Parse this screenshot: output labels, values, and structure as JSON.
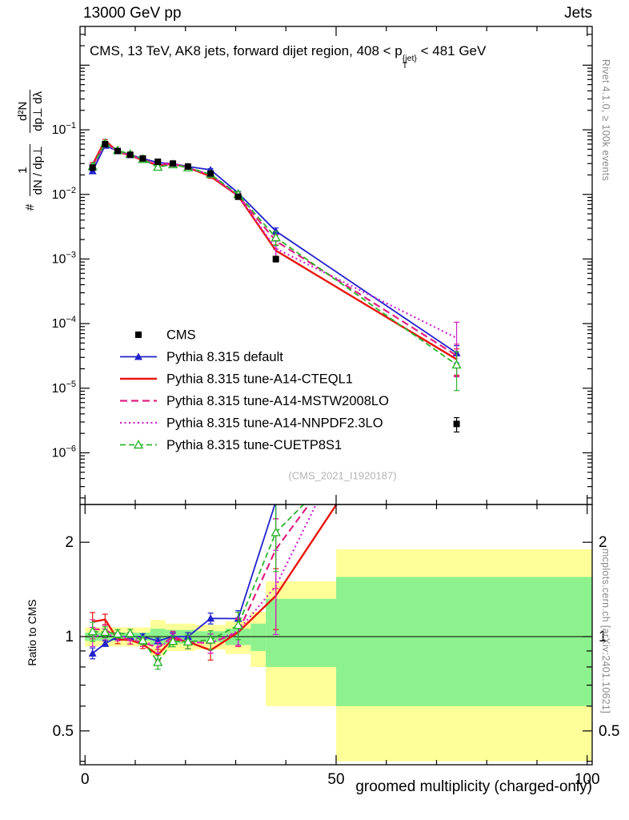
{
  "header": {
    "left": "13000 GeV pp",
    "right": "Jets"
  },
  "panel_title": {
    "pre": "CMS, 13 TeV, AK8 jets, forward dijet region, 408 < p",
    "sup": "{jet}",
    "sub": "T",
    "post": " < 481 GeV"
  },
  "y_axis_title": {
    "prefix": "#",
    "frac1_num": "1",
    "frac1_den": "dN / dp⊥",
    "frac2_num": "d²N",
    "frac2_den": "dp⊥ dλ"
  },
  "ratio_axis_title": "Ratio to CMS",
  "x_axis_title": "groomed multiplicity (charged-only)",
  "watermark": "(CMS_2021_I1920187)",
  "side_notes": {
    "rivet": "Rivet 4.1.0, ≥ 100k events",
    "mcplots": "mcplots.cern.ch [arXiv:2401.10621]"
  },
  "chart_data": {
    "type": "line",
    "title": "CMS, 13 TeV, AK8 jets, forward dijet region, 408 < pT{jet} < 481 GeV",
    "xlabel": "groomed multiplicity (charged-only)",
    "ylabel": "# 1/(dN/dp⊥) d²N/(dp⊥ dλ)",
    "ratio_ylabel": "Ratio to CMS",
    "x": [
      1.5,
      4,
      6.5,
      9,
      11.5,
      14.5,
      17.5,
      20.5,
      25,
      30.5,
      38,
      74
    ],
    "axes": {
      "x": {
        "min": -1,
        "max": 101,
        "major_ticks": [
          0,
          50,
          100
        ],
        "labels": [
          "0",
          "50",
          "100"
        ],
        "minor_step": 10
      },
      "y_top": {
        "scale": "log",
        "max_exp": 0.6,
        "min_exp": -6.8,
        "labeled_exponents": [
          -1,
          -2,
          -3,
          -4,
          -5,
          -6
        ]
      },
      "y_ratio": {
        "scale": "log",
        "min": 0.39,
        "max": 2.64,
        "major_ticks": [
          0.5,
          1,
          2
        ],
        "labels": [
          "0.5",
          "1",
          "2"
        ],
        "minor_ticks": [
          0.4,
          0.6,
          0.7,
          0.8,
          0.9
        ]
      }
    },
    "colors": {
      "band_yellow": "#ffff99",
      "band_green": "#8df28d",
      "reference_line": "#000000"
    },
    "series": [
      {
        "id": "cms",
        "label": "CMS",
        "color": "#000000",
        "line": "none",
        "marker": "square",
        "is_ref": true,
        "values": [
          0.026,
          0.06,
          0.047,
          0.041,
          0.036,
          0.032,
          0.03,
          0.027,
          0.021,
          0.0092,
          0.001,
          2.8e-06
        ],
        "err": [
          0.05,
          0.03,
          0.03,
          0.03,
          0.03,
          0.03,
          0.04,
          0.04,
          0.05,
          0.07,
          0.1,
          0.25
        ]
      },
      {
        "id": "pythia-default",
        "label": "Pythia 8.315 default",
        "color": "#2121cc",
        "line": "solid",
        "width": 1.8,
        "marker": "triangle",
        "values": [
          0.023,
          0.057,
          0.047,
          0.041,
          0.036,
          0.031,
          0.03,
          0.027,
          0.024,
          0.0105,
          0.0027,
          3.5e-05
        ],
        "err": [
          0.04,
          0.02,
          0.02,
          0.02,
          0.02,
          0.02,
          0.03,
          0.03,
          0.04,
          0.06,
          0.12,
          0.3
        ]
      },
      {
        "id": "a14-cteql1",
        "label": "Pythia 8.315 tune-A14-CTEQL1",
        "color": "#e8150d",
        "line": "solid",
        "width": 2.4,
        "marker": "none",
        "values": [
          0.029,
          0.068,
          0.046,
          0.04,
          0.034,
          0.028,
          0.0295,
          0.026,
          0.019,
          0.0095,
          0.00135,
          2.8e-05
        ],
        "err": [
          0.07,
          0.04,
          0.03,
          0.03,
          0.03,
          0.04,
          0.04,
          0.05,
          0.07,
          0.1,
          0.22,
          0.45
        ]
      },
      {
        "id": "a14-mstw2008lo",
        "label": "Pythia 8.315 tune-A14-MSTW2008LO",
        "color": "#e02080",
        "line": "dashed",
        "width": 2.2,
        "marker": "none",
        "values": [
          0.0275,
          0.063,
          0.047,
          0.04,
          0.0345,
          0.0295,
          0.03,
          0.026,
          0.02,
          0.0095,
          0.0019,
          3.2e-05
        ],
        "err": [
          0.07,
          0.04,
          0.03,
          0.03,
          0.03,
          0.04,
          0.04,
          0.05,
          0.07,
          0.1,
          0.25,
          0.5
        ]
      },
      {
        "id": "a14-nnpdf23lo",
        "label": "Pythia 8.315 tune-A14-NNPDF2.3LO",
        "color": "#cc22cc",
        "line": "dotted",
        "width": 2.2,
        "marker": "none",
        "values": [
          0.026,
          0.061,
          0.047,
          0.041,
          0.035,
          0.0295,
          0.0295,
          0.026,
          0.02,
          0.0096,
          0.00145,
          6e-05
        ],
        "err": [
          0.07,
          0.04,
          0.03,
          0.03,
          0.03,
          0.04,
          0.04,
          0.05,
          0.07,
          0.1,
          0.3,
          0.75
        ]
      },
      {
        "id": "cuetp8s1",
        "label": "Pythia 8.315 tune-CUETP8S1",
        "color": "#2db52d",
        "line": "dashed2",
        "width": 1.8,
        "marker": "triangle-open",
        "values": [
          0.027,
          0.062,
          0.048,
          0.042,
          0.035,
          0.0265,
          0.029,
          0.026,
          0.0205,
          0.01,
          0.00215,
          2.3e-05
        ],
        "err": [
          0.07,
          0.04,
          0.03,
          0.03,
          0.03,
          0.05,
          0.04,
          0.05,
          0.07,
          0.1,
          0.25,
          0.6
        ]
      }
    ],
    "ratio_bands": [
      {
        "x0": 0,
        "x1": 13,
        "yellow": [
          0.93,
          1.07
        ],
        "green": [
          0.97,
          1.03
        ]
      },
      {
        "x0": 13,
        "x1": 16,
        "yellow": [
          0.87,
          1.13
        ],
        "green": [
          0.94,
          1.06
        ]
      },
      {
        "x0": 16,
        "x1": 22,
        "yellow": [
          0.9,
          1.1
        ],
        "green": [
          0.95,
          1.05
        ]
      },
      {
        "x0": 22,
        "x1": 28,
        "yellow": [
          0.91,
          1.09
        ],
        "green": [
          0.96,
          1.04
        ]
      },
      {
        "x0": 28,
        "x1": 33,
        "yellow": [
          0.88,
          1.12
        ],
        "green": [
          0.94,
          1.06
        ]
      },
      {
        "x0": 33,
        "x1": 36,
        "yellow": [
          0.8,
          1.2
        ],
        "green": [
          0.9,
          1.1
        ]
      },
      {
        "x0": 36,
        "x1": 50,
        "yellow": [
          0.6,
          1.5
        ],
        "green": [
          0.8,
          1.32
        ]
      },
      {
        "x0": 50,
        "x1": 101,
        "yellow": [
          0.4,
          1.9
        ],
        "green": [
          0.6,
          1.55
        ]
      }
    ],
    "legend_position": "inside-left-middle",
    "grid": false
  }
}
